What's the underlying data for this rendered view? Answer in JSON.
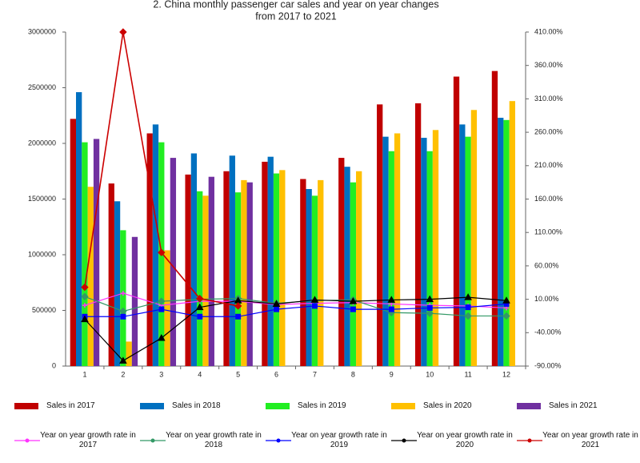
{
  "chart_data": {
    "type": "bar",
    "title": [
      "2. China monthly passenger car sales and year on year changes",
      "from 2017 to 2021"
    ],
    "categories": [
      "1",
      "2",
      "3",
      "4",
      "5",
      "6",
      "7",
      "8",
      "9",
      "10",
      "11",
      "12"
    ],
    "ylim": [
      0,
      3000000
    ],
    "yticks": [
      0,
      500000,
      1000000,
      1500000,
      2000000,
      2500000,
      3000000
    ],
    "y2lim": [
      -90,
      410
    ],
    "y2ticks": [
      {
        "value": -90,
        "label": "-90.00%"
      },
      {
        "value": -40,
        "label": "-40.00%"
      },
      {
        "value": 10,
        "label": "10.00%"
      },
      {
        "value": 60,
        "label": "60.00%"
      },
      {
        "value": 110,
        "label": "110.00%"
      },
      {
        "value": 160,
        "label": "160.00%"
      },
      {
        "value": 210,
        "label": "210.00%"
      },
      {
        "value": 260,
        "label": "260.00%"
      },
      {
        "value": 310,
        "label": "310.00%"
      },
      {
        "value": 360,
        "label": "360.00%"
      },
      {
        "value": 410,
        "label": "410.00%"
      }
    ],
    "grid": false,
    "series": [
      {
        "name": "Sales in 2017",
        "type": "bar",
        "color": "#c00000",
        "values": [
          2220000,
          1640000,
          2090000,
          1720000,
          1750000,
          1835000,
          1680000,
          1870000,
          2350000,
          2360000,
          2600000,
          2650000
        ]
      },
      {
        "name": "Sales in 2018",
        "type": "bar",
        "color": "#0070c0",
        "values": [
          2460000,
          1480000,
          2170000,
          1910000,
          1890000,
          1880000,
          1590000,
          1790000,
          2060000,
          2050000,
          2170000,
          2230000
        ]
      },
      {
        "name": "Sales in 2019",
        "type": "bar",
        "color": "#22ee22",
        "values": [
          2010000,
          1220000,
          2010000,
          1570000,
          1560000,
          1730000,
          1530000,
          1650000,
          1930000,
          1930000,
          2060000,
          2210000
        ]
      },
      {
        "name": "Sales in 2020",
        "type": "bar",
        "color": "#ffc000",
        "values": [
          1610000,
          220000,
          1040000,
          1530000,
          1670000,
          1760000,
          1670000,
          1750000,
          2090000,
          2120000,
          2300000,
          2380000
        ]
      },
      {
        "name": "Sales in 2021",
        "type": "bar",
        "color": "#7030a0",
        "values": [
          2040000,
          1160000,
          1870000,
          1700000,
          1650000,
          null,
          null,
          null,
          null,
          null,
          null,
          null
        ]
      },
      {
        "name": "Year on year growth rate in 2017",
        "type": "line",
        "axis": "y2",
        "marker": "plus",
        "color": "#ff33ff",
        "values": [
          1,
          19,
          1,
          7,
          7,
          2,
          4,
          5,
          3,
          1,
          0,
          -3
        ]
      },
      {
        "name": "Year on year growth rate in 2018",
        "type": "line",
        "axis": "y2",
        "marker": "diamond",
        "color": "#339966",
        "values": [
          14,
          -8,
          7,
          10,
          11,
          4,
          8,
          9,
          -10,
          -11,
          -15,
          -15
        ]
      },
      {
        "name": "Year on year growth rate in 2019",
        "type": "line",
        "axis": "y2",
        "marker": "square",
        "color": "#0000ff",
        "values": [
          -16,
          -16,
          -5,
          -16,
          -16,
          -5,
          0,
          -5,
          -5,
          -3,
          -2,
          3
        ]
      },
      {
        "name": "Year on year growth rate in 2020",
        "type": "line",
        "axis": "y2",
        "marker": "triangle",
        "color": "#000000",
        "values": [
          -20,
          -82,
          -48,
          -2,
          8,
          3,
          9,
          7,
          9,
          10,
          13,
          8
        ]
      },
      {
        "name": "Year on year growth rate in 2021",
        "type": "line",
        "axis": "y2",
        "marker": "diamond",
        "color": "#cc0000",
        "values": [
          28,
          410,
          80,
          11,
          0,
          null,
          null,
          null,
          null,
          null,
          null,
          null
        ]
      }
    ]
  }
}
